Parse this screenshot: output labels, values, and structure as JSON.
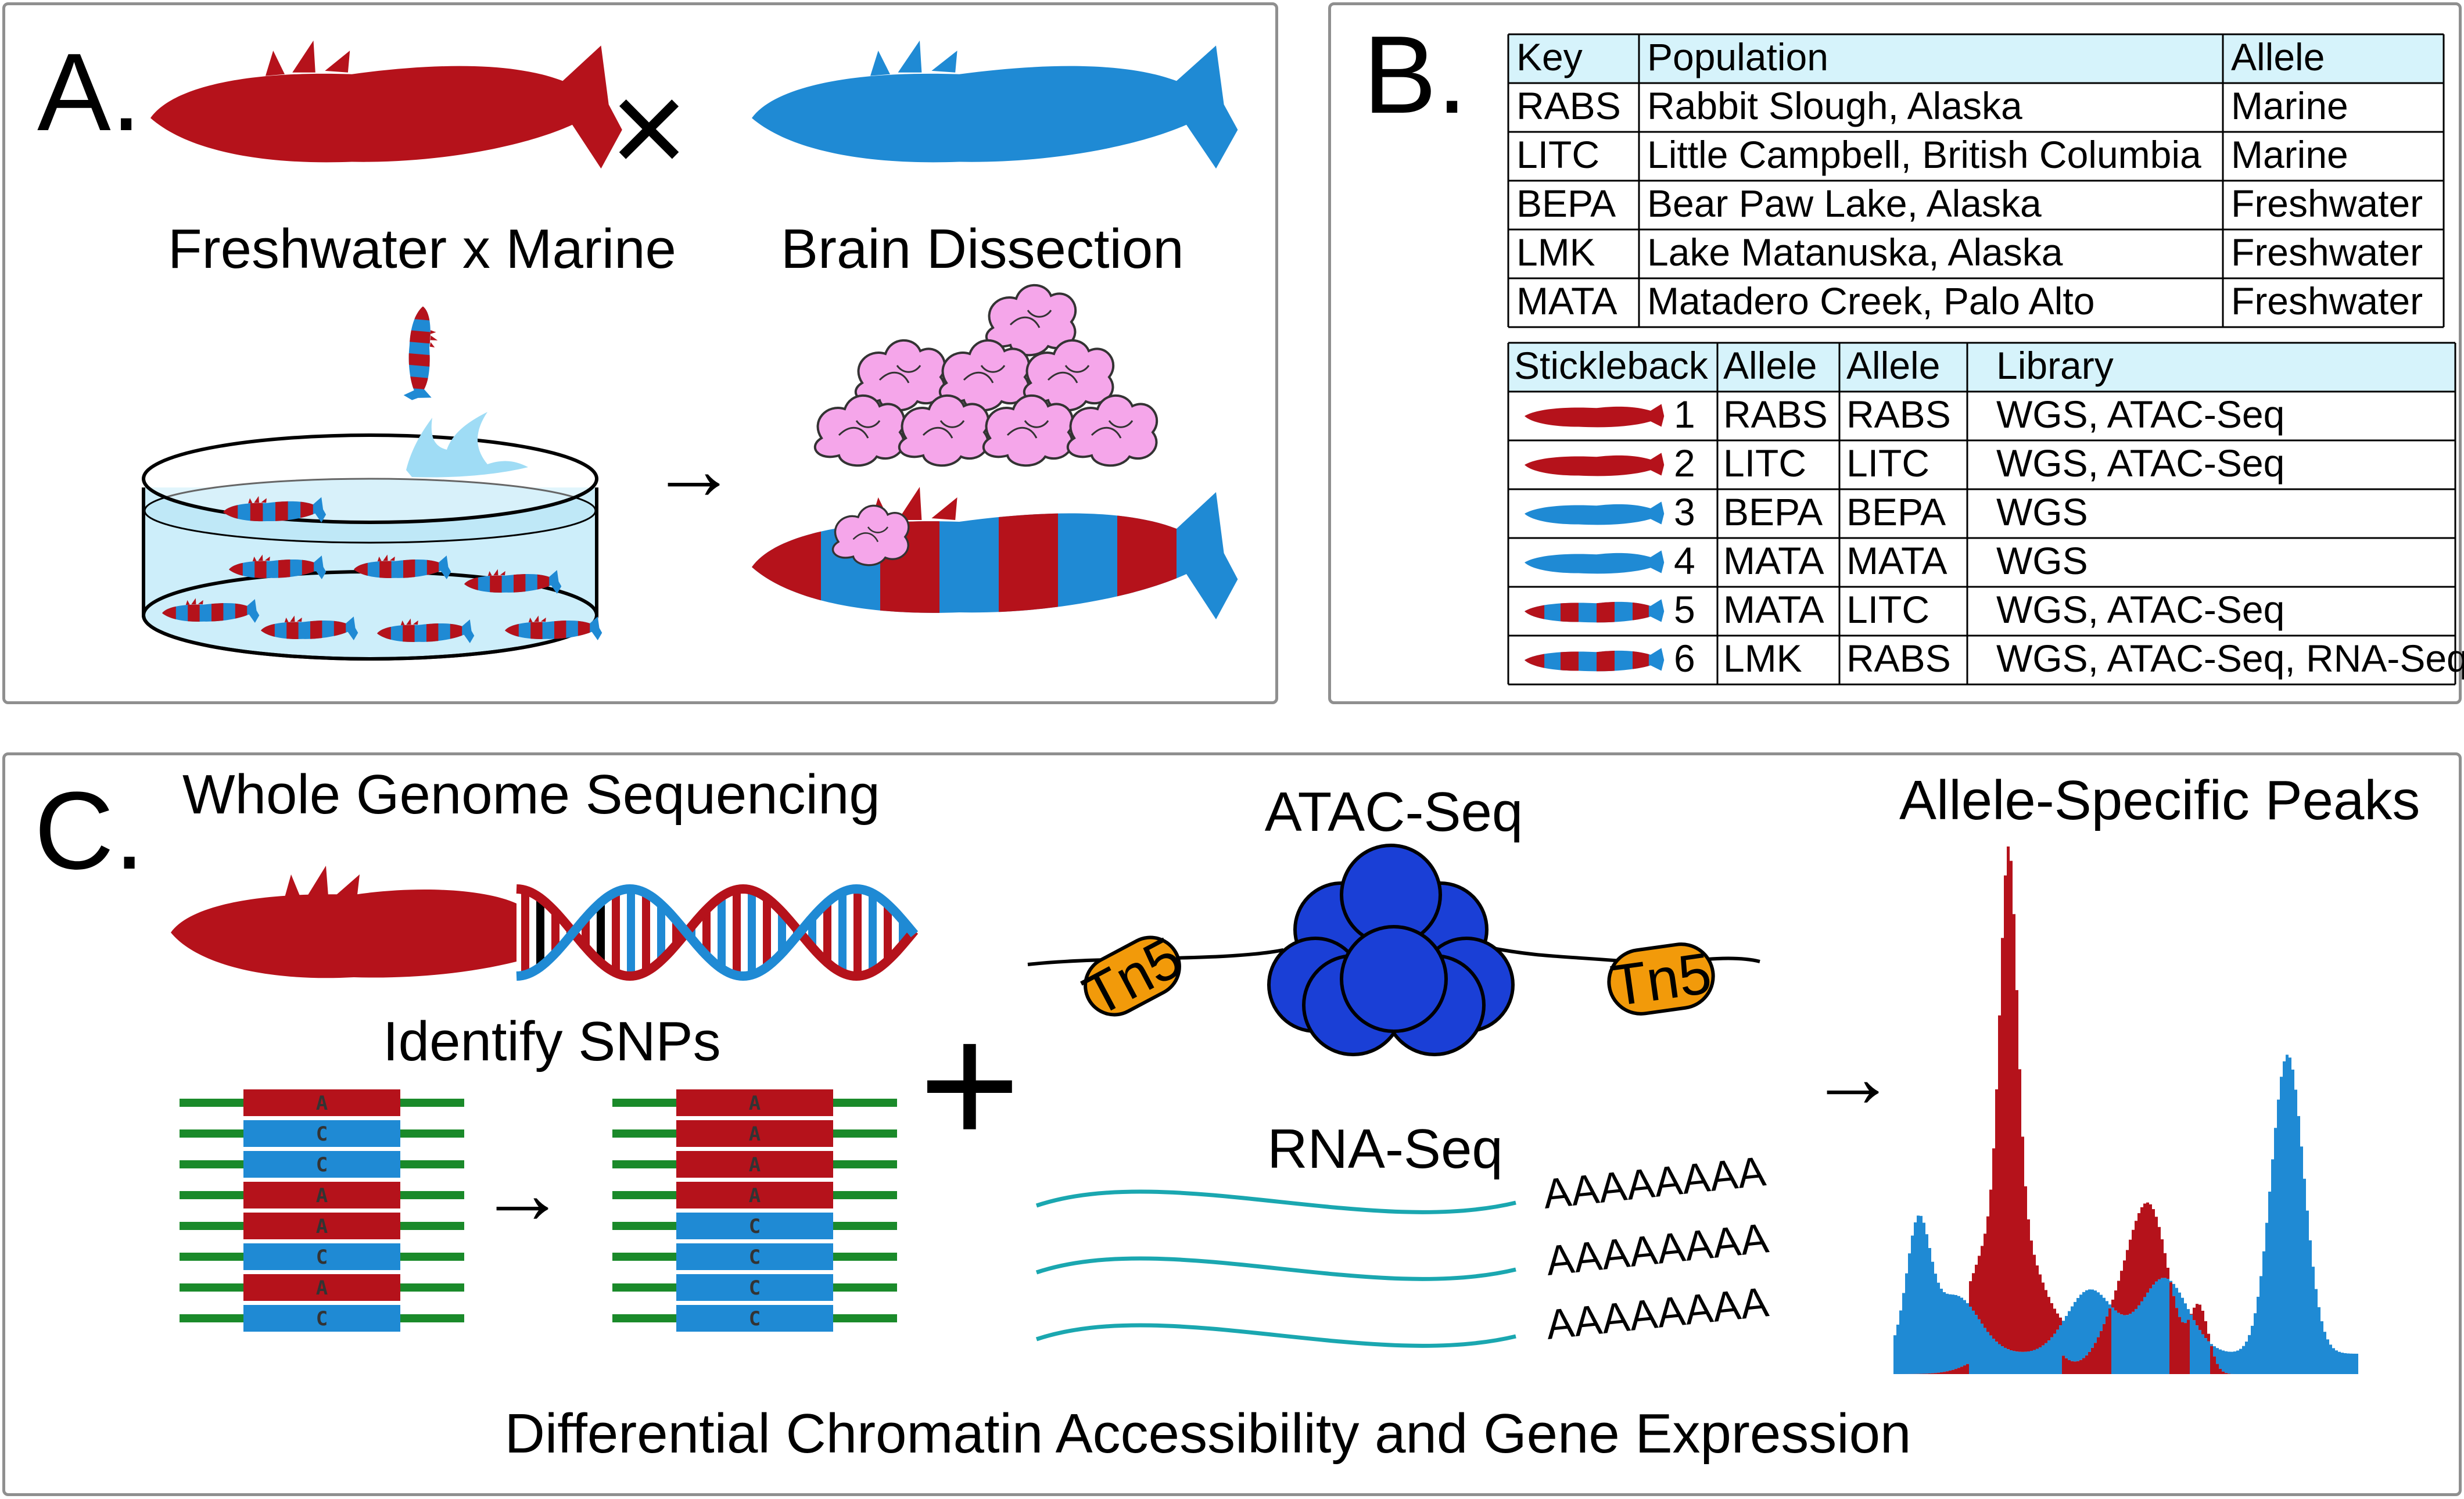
{
  "colors": {
    "freshwater": "#b5121b",
    "marine": "#1f8ad4",
    "green": "#1a8a2a",
    "teal": "#1aa7b0",
    "pink": "#f5a6ea",
    "nucleosome": "#1a3fd6",
    "tn5": "#f29a0a",
    "header_bg": "#d6f3fb"
  },
  "panel_a": {
    "label": "A.",
    "cross_caption": "Freshwater x Marine",
    "cross_symbol": "×",
    "dissection_caption": "Brain Dissection",
    "arrow": "→"
  },
  "panel_b": {
    "label": "B.",
    "key_table": {
      "headers": [
        "Key",
        "Population",
        "Allele"
      ],
      "rows": [
        [
          "RABS",
          "Rabbit Slough, Alaska",
          "Marine"
        ],
        [
          "LITC",
          "Little Campbell, British Columbia",
          "Marine"
        ],
        [
          "BEPA",
          "Bear Paw Lake, Alaska",
          "Freshwater"
        ],
        [
          "LMK",
          "Lake Matanuska, Alaska",
          "Freshwater"
        ],
        [
          "MATA",
          "Matadero Creek, Palo Alto",
          "Freshwater"
        ]
      ]
    },
    "stickleback_table": {
      "headers": [
        "Stickleback",
        "Allele",
        "Allele",
        "Library"
      ],
      "rows": [
        {
          "fish": "freshwater",
          "num": "1",
          "a1": "RABS",
          "a2": "RABS",
          "lib": "WGS, ATAC-Seq"
        },
        {
          "fish": "freshwater",
          "num": "2",
          "a1": "LITC",
          "a2": "LITC",
          "lib": "WGS, ATAC-Seq"
        },
        {
          "fish": "marine",
          "num": "3",
          "a1": "BEPA",
          "a2": "BEPA",
          "lib": "WGS"
        },
        {
          "fish": "marine",
          "num": "4",
          "a1": "MATA",
          "a2": "MATA",
          "lib": "WGS"
        },
        {
          "fish": "hybrid",
          "num": "5",
          "a1": "MATA",
          "a2": "LITC",
          "lib": "WGS, ATAC-Seq"
        },
        {
          "fish": "hybrid",
          "num": "6",
          "a1": "LMK",
          "a2": "RABS",
          "lib": "WGS, ATAC-Seq, RNA-Seq"
        }
      ]
    }
  },
  "panel_c": {
    "label": "C.",
    "wgs_title": "Whole Genome Sequencing",
    "snp_title": "Identify SNPs",
    "reads_before": [
      "A",
      "C",
      "C",
      "A",
      "A",
      "C",
      "A",
      "C"
    ],
    "reads_after": [
      "A",
      "A",
      "A",
      "A",
      "C",
      "C",
      "C",
      "C"
    ],
    "arrow": "→",
    "plus": "+",
    "atac_title": "ATAC-Seq",
    "tn5_label": "Tn5",
    "rna_title": "RNA-Seq",
    "polya": "AAAAAAAA",
    "peaks_title": "Allele-Specific Peaks",
    "footer": "Differential Chromatin Accessibility and Gene Expression"
  }
}
